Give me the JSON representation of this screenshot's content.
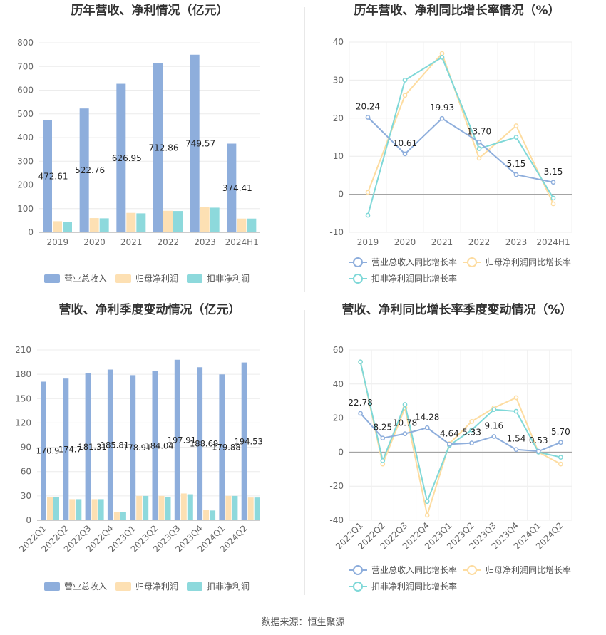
{
  "source_note": "数据来源：恒生聚源",
  "colors": {
    "revenue": "#8eaedc",
    "parent_profit": "#fde0b3",
    "deducted_profit": "#8dd9dc",
    "revenue_line": "#8eaedc",
    "parent_line": "#fddca0",
    "deducted_line": "#7fd8d8"
  },
  "chart_data": [
    {
      "type": "bar",
      "title": "历年营收、净利情况（亿元）",
      "categories": [
        "2019",
        "2020",
        "2021",
        "2022",
        "2023",
        "2024H1"
      ],
      "ylim": [
        0,
        800
      ],
      "yticks": [
        0,
        100,
        200,
        300,
        400,
        500,
        600,
        700,
        800
      ],
      "series": [
        {
          "name": "营业总收入",
          "values": [
            472.61,
            522.76,
            626.95,
            712.86,
            749.57,
            374.41
          ]
        },
        {
          "name": "归母净利润",
          "values": [
            47,
            60,
            82,
            91,
            106,
            58
          ]
        },
        {
          "name": "扣非净利润",
          "values": [
            45,
            59,
            80,
            90,
            104,
            58
          ]
        }
      ],
      "data_labels": [
        "472.61",
        "522.76",
        "626.95",
        "712.86",
        "749.57",
        "374.41"
      ],
      "legend": "bottom"
    },
    {
      "type": "line",
      "title": "历年营收、净利同比增长率情况（%）",
      "categories": [
        "2019",
        "2020",
        "2021",
        "2022",
        "2023",
        "2024H1"
      ],
      "ylim": [
        -10,
        40
      ],
      "yticks": [
        -10,
        0,
        10,
        20,
        30,
        40
      ],
      "series": [
        {
          "name": "营业总收入同比增长率",
          "values": [
            20.24,
            10.61,
            19.93,
            13.7,
            5.15,
            3.15
          ]
        },
        {
          "name": "归母净利润同比增长率",
          "values": [
            0.5,
            26,
            37,
            9.5,
            18,
            -2.5
          ]
        },
        {
          "name": "扣非净利润同比增长率",
          "values": [
            -5.5,
            30,
            36,
            12,
            15,
            -1
          ]
        }
      ],
      "data_labels": [
        "20.24",
        "10.61",
        "19.93",
        "13.70",
        "5.15",
        "3.15"
      ],
      "legend": "bottom"
    },
    {
      "type": "bar",
      "title": "营收、净利季度变动情况（亿元）",
      "categories": [
        "2022Q1",
        "2022Q2",
        "2022Q3",
        "2022Q4",
        "2023Q1",
        "2023Q2",
        "2023Q3",
        "2023Q4",
        "2024Q1",
        "2024Q2"
      ],
      "ylim": [
        0,
        210
      ],
      "yticks": [
        0,
        30,
        60,
        90,
        120,
        150,
        180,
        210
      ],
      "series": [
        {
          "name": "营业总收入",
          "values": [
            170.9,
            174.7,
            181.31,
            185.81,
            178.91,
            184.04,
            197.91,
            188.69,
            179.88,
            194.53
          ]
        },
        {
          "name": "归母净利润",
          "values": [
            29,
            26,
            26,
            10,
            30,
            30,
            33,
            13,
            30,
            28
          ]
        },
        {
          "name": "扣非净利润",
          "values": [
            29,
            26,
            26,
            10,
            30,
            29,
            32,
            12,
            30,
            28
          ]
        }
      ],
      "data_labels": [
        "170.9",
        "174.7",
        "181.31",
        "185.81",
        "178.91",
        "184.04",
        "197.91",
        "188.69",
        "179.88",
        "194.53"
      ],
      "legend": "bottom"
    },
    {
      "type": "line",
      "title": "营收、净利同比增长率季度变动情况（%）",
      "categories": [
        "2022Q1",
        "2022Q2",
        "2022Q3",
        "2022Q4",
        "2023Q1",
        "2023Q2",
        "2023Q3",
        "2023Q4",
        "2024Q1",
        "2024Q2"
      ],
      "ylim": [
        -40,
        60
      ],
      "yticks": [
        -40,
        -20,
        0,
        20,
        40,
        60
      ],
      "series": [
        {
          "name": "营业总收入同比增长率",
          "values": [
            22.78,
            8.25,
            10.78,
            14.28,
            4.64,
            5.33,
            9.16,
            1.54,
            0.53,
            5.7
          ]
        },
        {
          "name": "归母净利润同比增长率",
          "values": [
            53,
            -7,
            26,
            -37,
            5,
            18,
            26,
            32,
            0,
            -7
          ]
        },
        {
          "name": "扣非净利润同比增长率",
          "values": [
            53,
            -5,
            28,
            -29,
            4,
            13,
            25,
            24,
            0,
            -3
          ]
        }
      ],
      "data_labels": [
        "22.78",
        "8.25",
        "10.78",
        "14.28",
        "4.64",
        "5.33",
        "9.16",
        "1.54",
        "0.53",
        "5.70"
      ],
      "legend": "bottom"
    }
  ]
}
